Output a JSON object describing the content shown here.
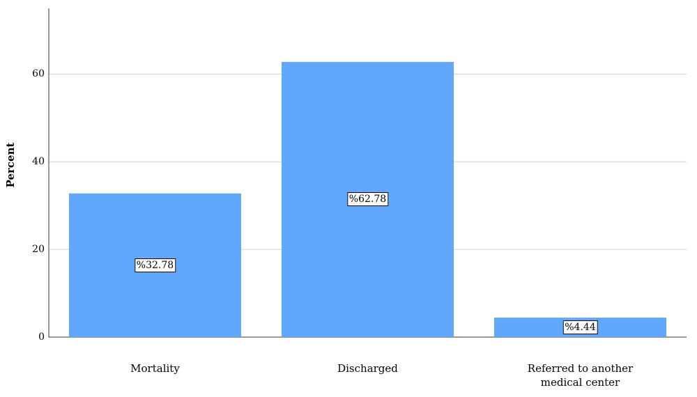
{
  "chart_data": {
    "type": "bar",
    "categories": [
      "Mortality",
      "Discharged",
      "Referred to another\nmedical center"
    ],
    "values": [
      32.78,
      62.78,
      4.44
    ],
    "data_labels": [
      "%32.78",
      "%62.78",
      "%4.44"
    ],
    "title": "",
    "xlabel": "",
    "ylabel": "Percent",
    "ylim": [
      0,
      75
    ],
    "yticks": [
      "0",
      "20",
      "40",
      "60"
    ],
    "grid": true,
    "bar_color": "#5fa8fc",
    "grid_color": "#cfcfcf"
  }
}
